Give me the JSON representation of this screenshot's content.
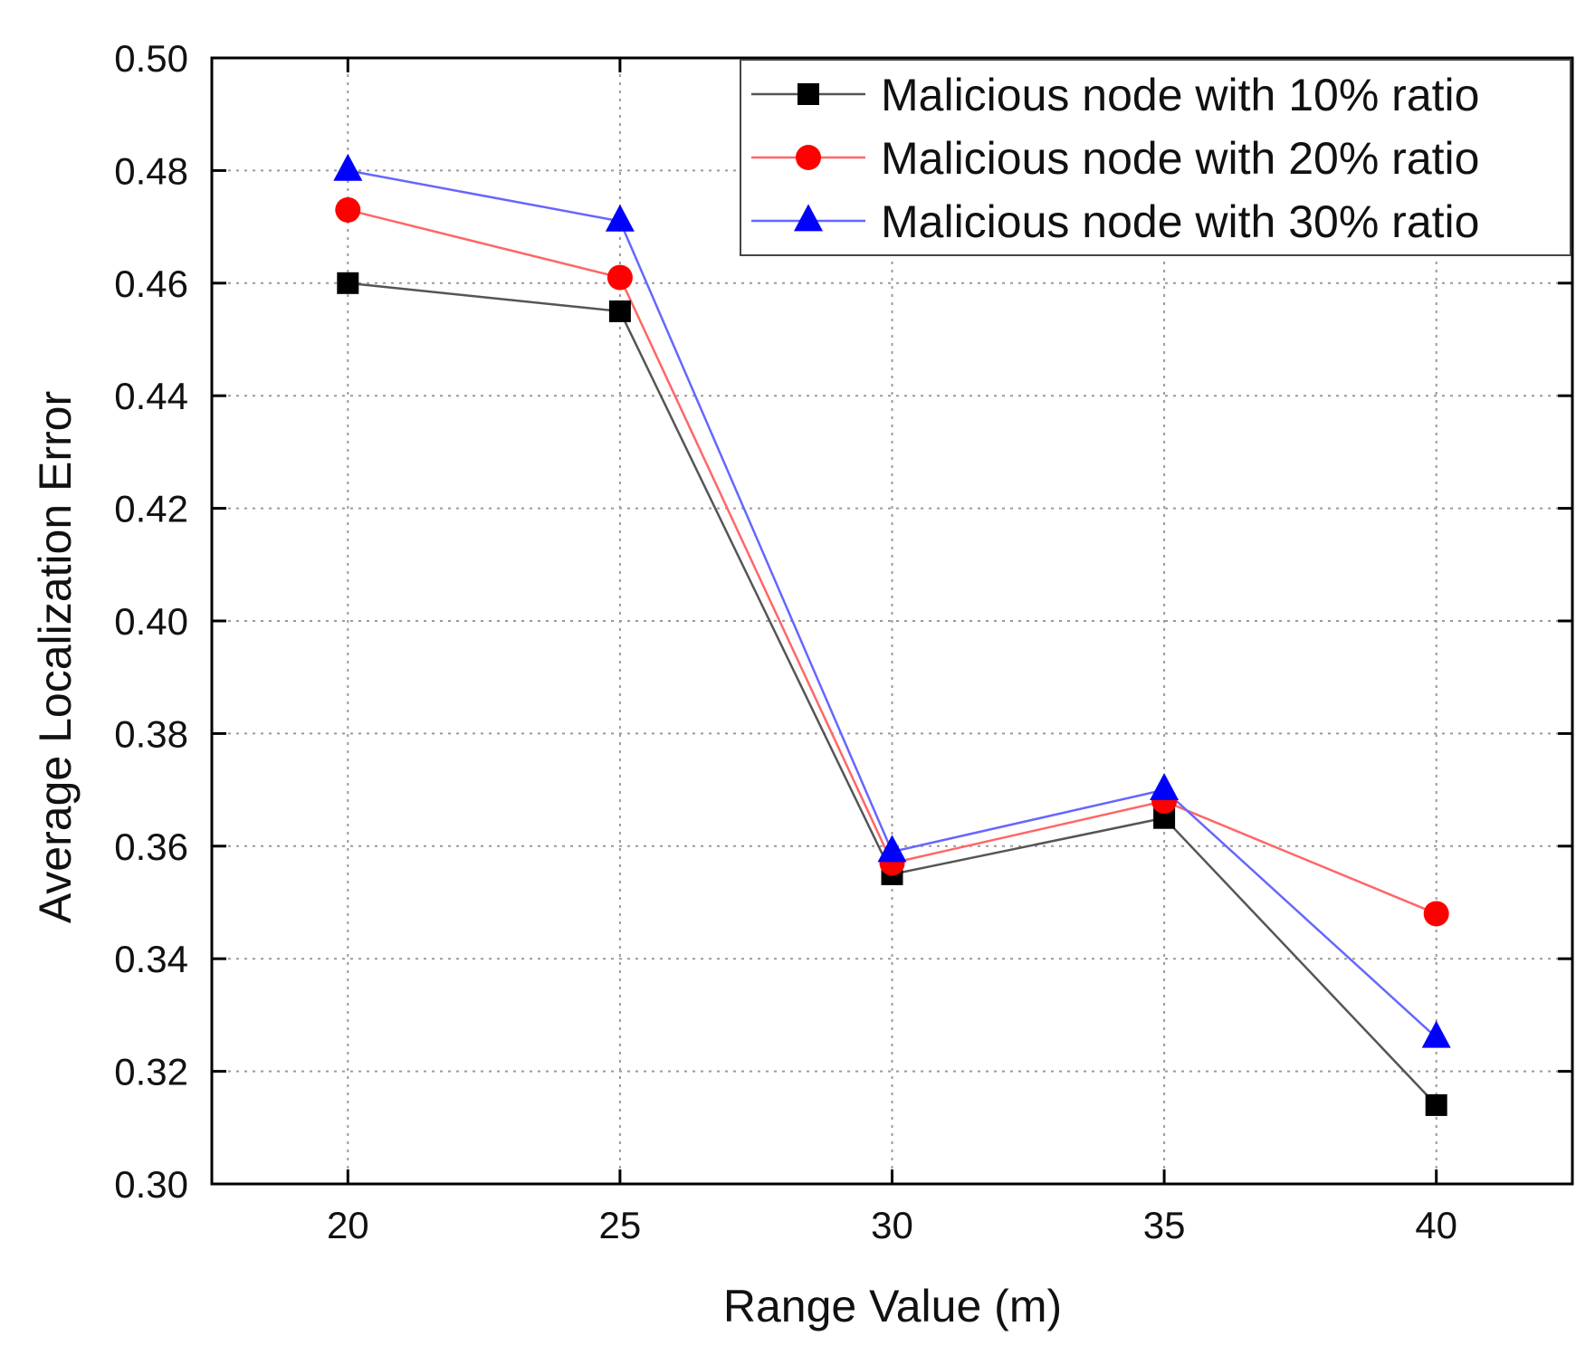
{
  "chart_data": {
    "type": "line",
    "title": "",
    "xlabel": "Range Value (m)",
    "ylabel": "Average Localization Error",
    "x": [
      20,
      25,
      30,
      35,
      40
    ],
    "xlim": [
      17.5,
      42.5
    ],
    "ylim": [
      0.3,
      0.5
    ],
    "xticks": [
      20,
      25,
      30,
      35,
      40
    ],
    "yticks": [
      0.3,
      0.32,
      0.34,
      0.36,
      0.38,
      0.4,
      0.42,
      0.44,
      0.46,
      0.48,
      0.5
    ],
    "ytick_labels": [
      "0.30",
      "0.32",
      "0.34",
      "0.36",
      "0.38",
      "0.40",
      "0.42",
      "0.44",
      "0.46",
      "0.48",
      "0.50"
    ],
    "grid": true,
    "legend_position": "top-right",
    "series": [
      {
        "name": "Malicious node with 10% ratio",
        "marker": "square",
        "marker_color": "#000000",
        "line_color": "#555555",
        "values": [
          0.46,
          0.455,
          0.355,
          0.365,
          0.314
        ]
      },
      {
        "name": "Malicious node with 20% ratio",
        "marker": "circle",
        "marker_color": "#ff0000",
        "line_color": "#ff6666",
        "values": [
          0.473,
          0.461,
          0.357,
          0.368,
          0.348
        ]
      },
      {
        "name": "Malicious node with 30% ratio",
        "marker": "triangle",
        "marker_color": "#0000ff",
        "line_color": "#6666ff",
        "values": [
          0.48,
          0.471,
          0.359,
          0.37,
          0.326
        ]
      }
    ]
  }
}
